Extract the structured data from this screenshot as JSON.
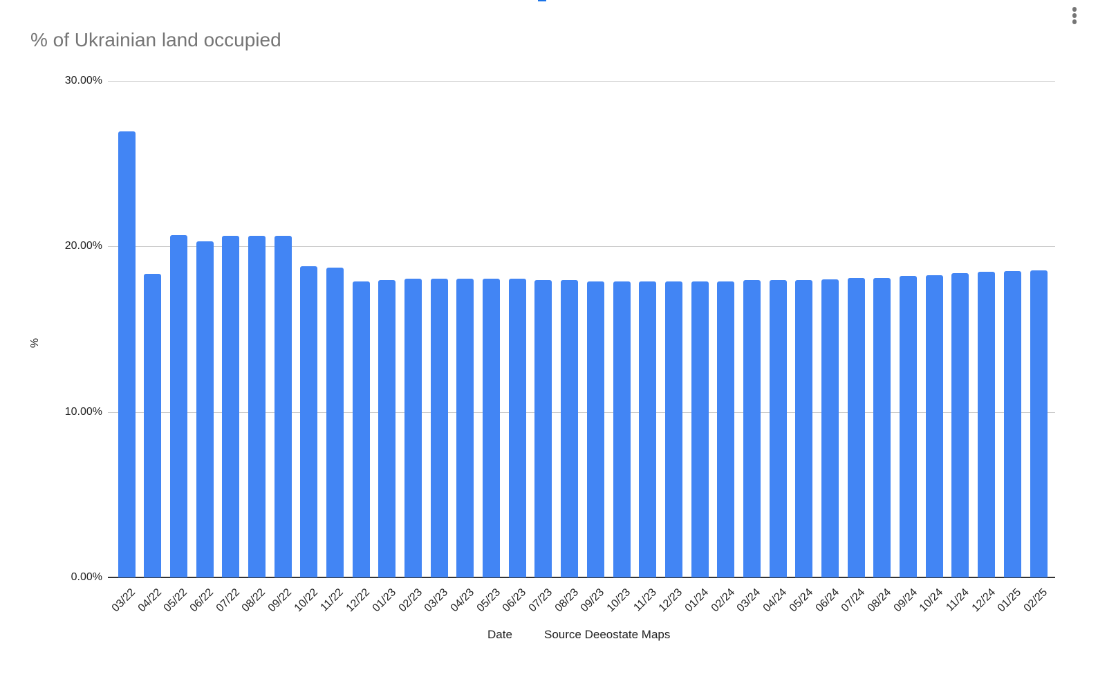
{
  "chart": {
    "title": "% of Ukrainian land occupied",
    "ylabel": "%",
    "xlabel_date": "Date",
    "xlabel_source": "Source Deeostate Maps",
    "bar_color": "#4285f4",
    "menu_icon": "more-vert-icon"
  },
  "chart_data": {
    "type": "bar",
    "title": "% of Ukrainian land occupied",
    "xlabel": "Date        Source Deeostate Maps",
    "ylabel": "%",
    "ylim": [
      0,
      30
    ],
    "yticks": [
      "0.00%",
      "10.00%",
      "20.00%",
      "30.00%"
    ],
    "grid": true,
    "legend": "none",
    "categories": [
      "03/22",
      "04/22",
      "05/22",
      "06/22",
      "07/22",
      "08/22",
      "09/22",
      "10/22",
      "11/22",
      "12/22",
      "01/23",
      "02/23",
      "03/23",
      "04/23",
      "05/23",
      "06/23",
      "07/23",
      "08/23",
      "09/23",
      "10/23",
      "11/23",
      "12/23",
      "01/24",
      "02/24",
      "03/24",
      "04/24",
      "05/24",
      "06/24",
      "07/24",
      "08/24",
      "09/24",
      "10/24",
      "11/24",
      "12/24",
      "01/25",
      "02/25"
    ],
    "values": [
      26.95,
      18.35,
      20.7,
      20.3,
      20.65,
      20.65,
      20.65,
      18.8,
      18.7,
      17.9,
      17.95,
      18.05,
      18.05,
      18.05,
      18.05,
      18.05,
      17.95,
      17.95,
      17.9,
      17.9,
      17.9,
      17.9,
      17.9,
      17.9,
      17.95,
      17.95,
      17.95,
      18.0,
      18.1,
      18.1,
      18.2,
      18.25,
      18.4,
      18.45,
      18.5,
      18.55
    ]
  }
}
